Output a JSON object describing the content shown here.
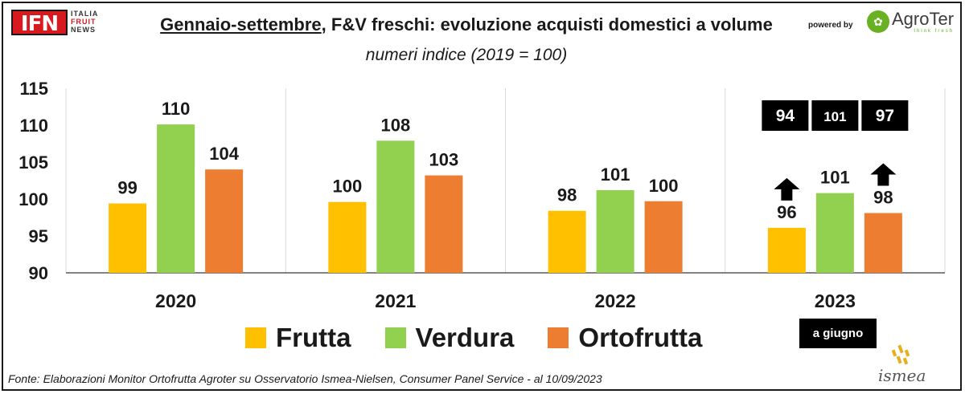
{
  "header": {
    "logo_main": "IFN",
    "logo_line1": "ITALIA",
    "logo_line2": "FRUIT",
    "logo_line3": "NEWS",
    "title_underlined": "Gennaio-settembre",
    "title_rest": ", F&V freschi: evoluzione acquisti domestici a volume",
    "subtitle": "numeri indice (2019 = 100)",
    "powered_by": "powered by",
    "agroter_name": "AgroTer",
    "agroter_tagline": "think fresh"
  },
  "chart_data": {
    "type": "bar",
    "title": "Gennaio-settembre, F&V freschi: evoluzione acquisti domestici a volume",
    "subtitle": "numeri indice (2019 = 100)",
    "categories": [
      "2020",
      "2021",
      "2022",
      "2023"
    ],
    "series": [
      {
        "name": "Frutta",
        "color": "#ffc000",
        "values": [
          99.4,
          99.6,
          98.4,
          96.1
        ],
        "labels": [
          "99",
          "100",
          "98",
          "96"
        ]
      },
      {
        "name": "Verdura",
        "color": "#92d050",
        "values": [
          110.1,
          107.9,
          101.2,
          100.8
        ],
        "labels": [
          "110",
          "108",
          "101",
          "101"
        ]
      },
      {
        "name": "Ortofrutta",
        "color": "#ed7d31",
        "values": [
          104.0,
          103.2,
          99.7,
          98.1
        ],
        "labels": [
          "104",
          "103",
          "100",
          "98"
        ]
      }
    ],
    "ylim": [
      90,
      115
    ],
    "yticks": [
      90,
      95,
      100,
      105,
      110,
      115
    ],
    "grid": false,
    "legend_position": "bottom",
    "annotation_2023": {
      "boxes": [
        "94",
        "101",
        "97"
      ],
      "arrows": [
        "up",
        "up"
      ],
      "note": "a giugno"
    }
  },
  "legend": {
    "items": [
      {
        "label": "Frutta",
        "color": "#ffc000"
      },
      {
        "label": "Verdura",
        "color": "#92d050"
      },
      {
        "label": "Ortofrutta",
        "color": "#ed7d31"
      }
    ]
  },
  "footer": {
    "source": "Fonte: Elaborazioni Monitor Ortofrutta Agroter su Osservatorio Ismea-Nielsen, Consumer Panel Service - al 10/09/2023",
    "ismea_logo_text": "ismea"
  },
  "icons": {
    "arrow": "arrow-up-icon",
    "ismea": "ismea-logo"
  }
}
